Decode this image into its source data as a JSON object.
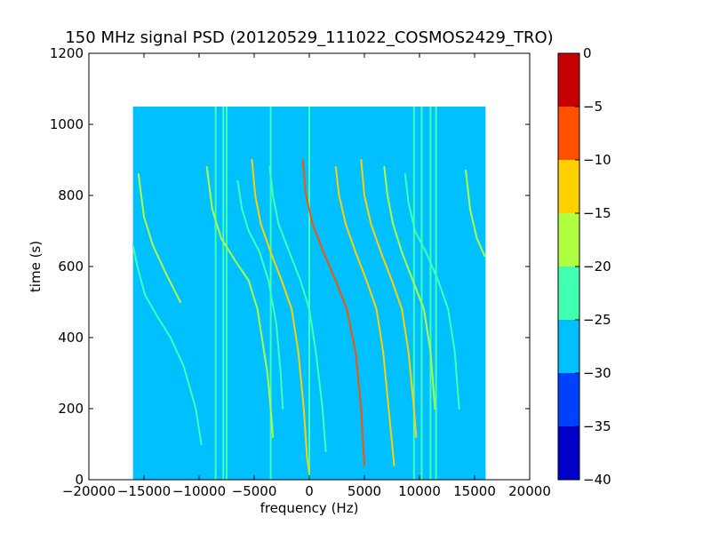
{
  "chart_data": {
    "type": "heatmap",
    "title": "150 MHz signal PSD (20120529_111022_COSMOS2429_TRO)",
    "xlabel": "frequency (Hz)",
    "ylabel": "time (s)",
    "xlim": [
      -20000,
      20000
    ],
    "ylim": [
      0,
      1200
    ],
    "x_ticks": [
      -20000,
      -15000,
      -10000,
      -5000,
      0,
      5000,
      10000,
      15000,
      20000
    ],
    "x_tick_labels": [
      "−20000",
      "−15000",
      "−10000",
      "−5000",
      "0",
      "5000",
      "10000",
      "15000",
      "20000"
    ],
    "y_ticks": [
      0,
      200,
      400,
      600,
      800,
      1000,
      1200
    ],
    "y_tick_labels": [
      "0",
      "200",
      "400",
      "600",
      "800",
      "1000",
      "1200"
    ],
    "data_extent": {
      "x": [
        -16000,
        16000
      ],
      "y": [
        0,
        1050
      ]
    },
    "background_level": -27,
    "colorbar": {
      "range": [
        -40,
        0
      ],
      "ticks": [
        0,
        -5,
        -10,
        -15,
        -20,
        -25,
        -30,
        -35,
        -40
      ],
      "tick_labels": [
        "0",
        "−5",
        "−10",
        "−15",
        "−20",
        "−25",
        "−30",
        "−35",
        "−40"
      ],
      "levels": [
        {
          "from": -40,
          "to": -35,
          "color": "#0000c8"
        },
        {
          "from": -35,
          "to": -30,
          "color": "#0040ff"
        },
        {
          "from": -30,
          "to": -25,
          "color": "#00c0ff"
        },
        {
          "from": -25,
          "to": -20,
          "color": "#40ffb0"
        },
        {
          "from": -20,
          "to": -15,
          "color": "#b0ff40"
        },
        {
          "from": -15,
          "to": -10,
          "color": "#ffd000"
        },
        {
          "from": -10,
          "to": -5,
          "color": "#ff5000"
        },
        {
          "from": -5,
          "to": 0,
          "color": "#c80000"
        }
      ]
    },
    "vertical_lines": [
      {
        "x": -8500,
        "level": -22
      },
      {
        "x": -7800,
        "level": -22
      },
      {
        "x": -7500,
        "level": -22
      },
      {
        "x": -3500,
        "level": -22
      },
      {
        "x": 0,
        "level": -22
      },
      {
        "x": 9500,
        "level": -22
      },
      {
        "x": 10200,
        "level": -22
      },
      {
        "x": 11000,
        "level": -22
      },
      {
        "x": 11500,
        "level": -22
      }
    ],
    "traces": [
      {
        "name": "",
        "level": -21,
        "points": [
          [
            -16000,
            660
          ],
          [
            -15600,
            600
          ],
          [
            -14900,
            520
          ],
          [
            -13800,
            460
          ],
          [
            -12600,
            400
          ],
          [
            -11400,
            320
          ],
          [
            -10300,
            200
          ],
          [
            -9800,
            100
          ]
        ]
      },
      {
        "name": "",
        "level": -20,
        "points": [
          [
            -15500,
            860
          ],
          [
            -15000,
            740
          ],
          [
            -14200,
            660
          ],
          [
            -13000,
            580
          ],
          [
            -11700,
            500
          ]
        ]
      },
      {
        "name": "",
        "level": -20,
        "points": [
          [
            -9300,
            880
          ],
          [
            -8800,
            760
          ],
          [
            -8000,
            680
          ],
          [
            -6800,
            620
          ],
          [
            -5500,
            560
          ],
          [
            -4700,
            480
          ],
          [
            -4200,
            380
          ],
          [
            -3800,
            300
          ],
          [
            -3500,
            200
          ],
          [
            -3300,
            120
          ]
        ]
      },
      {
        "name": "",
        "level": -21,
        "points": [
          [
            -6500,
            840
          ],
          [
            -6100,
            760
          ],
          [
            -5500,
            700
          ],
          [
            -4500,
            640
          ],
          [
            -3700,
            560
          ],
          [
            -3000,
            440
          ],
          [
            -2600,
            300
          ],
          [
            -2400,
            200
          ]
        ]
      },
      {
        "name": "",
        "level": -13,
        "points": [
          [
            -5200,
            900
          ],
          [
            -4900,
            800
          ],
          [
            -4400,
            720
          ],
          [
            -3500,
            640
          ],
          [
            -2500,
            560
          ],
          [
            -1600,
            480
          ],
          [
            -1000,
            360
          ],
          [
            -500,
            200
          ],
          [
            -200,
            60
          ],
          [
            0,
            20
          ]
        ]
      },
      {
        "name": "",
        "level": -21,
        "points": [
          [
            -3600,
            880
          ],
          [
            -3300,
            800
          ],
          [
            -2800,
            720
          ],
          [
            -1800,
            640
          ],
          [
            -800,
            560
          ],
          [
            0,
            480
          ],
          [
            600,
            360
          ],
          [
            1200,
            200
          ],
          [
            1500,
            80
          ]
        ]
      },
      {
        "name": "",
        "level": -6,
        "points": [
          [
            -600,
            900
          ],
          [
            -300,
            800
          ],
          [
            300,
            720
          ],
          [
            1300,
            640
          ],
          [
            2400,
            560
          ],
          [
            3400,
            480
          ],
          [
            4200,
            360
          ],
          [
            4700,
            200
          ],
          [
            5000,
            40
          ]
        ]
      },
      {
        "name": "",
        "level": -12,
        "points": [
          [
            2400,
            880
          ],
          [
            2700,
            800
          ],
          [
            3300,
            720
          ],
          [
            4200,
            640
          ],
          [
            5200,
            560
          ],
          [
            6100,
            480
          ],
          [
            6700,
            360
          ],
          [
            7200,
            200
          ],
          [
            7700,
            40
          ]
        ]
      },
      {
        "name": "",
        "level": -13,
        "points": [
          [
            4700,
            900
          ],
          [
            5000,
            800
          ],
          [
            5600,
            720
          ],
          [
            6500,
            640
          ],
          [
            7500,
            560
          ],
          [
            8400,
            480
          ],
          [
            9000,
            360
          ],
          [
            9500,
            200
          ],
          [
            9700,
            120
          ]
        ]
      },
      {
        "name": "",
        "level": -19,
        "points": [
          [
            6800,
            880
          ],
          [
            7100,
            800
          ],
          [
            7600,
            720
          ],
          [
            8400,
            640
          ],
          [
            9400,
            560
          ],
          [
            10400,
            480
          ],
          [
            11000,
            360
          ],
          [
            11400,
            200
          ]
        ]
      },
      {
        "name": "",
        "level": -21,
        "points": [
          [
            8700,
            860
          ],
          [
            9000,
            780
          ],
          [
            9600,
            700
          ],
          [
            10600,
            640
          ],
          [
            11700,
            560
          ],
          [
            12600,
            480
          ],
          [
            13200,
            360
          ],
          [
            13600,
            200
          ]
        ]
      },
      {
        "name": "",
        "level": -19,
        "points": [
          [
            14200,
            870
          ],
          [
            14600,
            760
          ],
          [
            15200,
            680
          ],
          [
            15900,
            630
          ]
        ]
      }
    ]
  }
}
